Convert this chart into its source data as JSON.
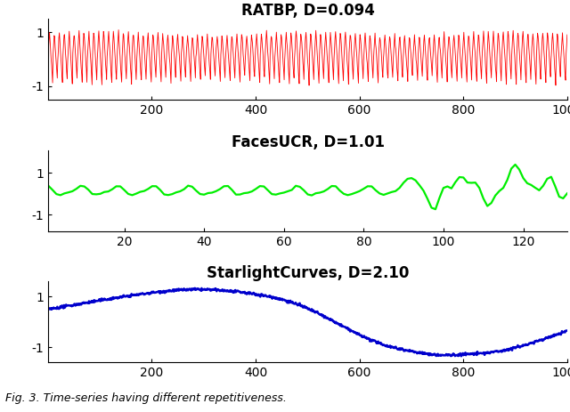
{
  "title1": "RATBP, D=0.094",
  "title2": "FacesUCR, D=1.01",
  "title3": "StarlightCurves, D=2.10",
  "color1": "#FF0000",
  "color2": "#00EE00",
  "color3": "#0000CC",
  "fig_caption": "Fig. 3. Time-series having different repetitiveness.",
  "title_fontsize": 12,
  "tick_fontsize": 10,
  "caption_fontsize": 9,
  "linewidth1": 0.6,
  "linewidth2": 1.6,
  "linewidth3": 1.8,
  "n1": 1000,
  "n2": 131,
  "n3": 1000,
  "background": "#FFFFFF"
}
